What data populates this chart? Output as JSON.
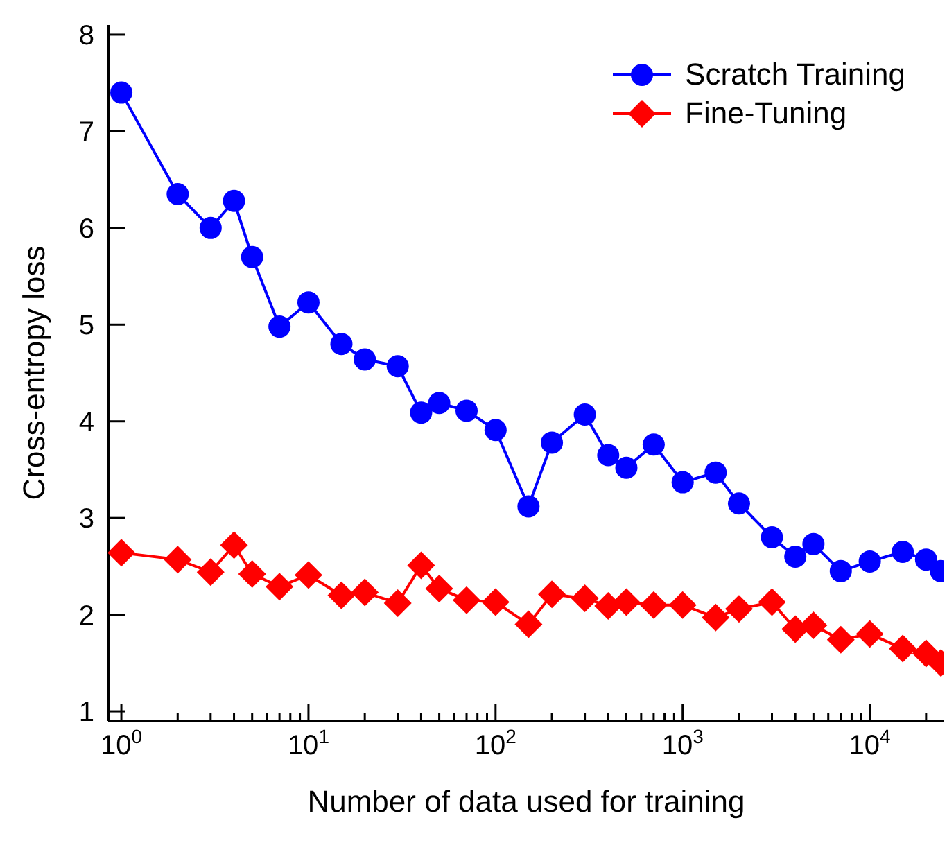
{
  "chart_data": {
    "type": "line",
    "xlabel": "Number of data used for training",
    "ylabel": "Cross-entropy loss",
    "log": "x",
    "xlim": [
      0.85,
      25000
    ],
    "ylim": [
      0.9,
      8.1
    ],
    "yticks": [
      1,
      2,
      3,
      4,
      5,
      6,
      7,
      8
    ],
    "xticks": [
      {
        "value": 1,
        "label": "10$^{0}$"
      },
      {
        "value": 2,
        "label": null
      },
      {
        "value": 3,
        "label": null
      },
      {
        "value": 4,
        "label": null
      },
      {
        "value": 5,
        "label": null
      },
      {
        "value": 6,
        "label": null
      },
      {
        "value": 7,
        "label": null
      },
      {
        "value": 8,
        "label": null
      },
      {
        "value": 9,
        "label": null
      },
      {
        "value": 10,
        "label": "10$^{1}$"
      },
      {
        "value": 20,
        "label": null
      },
      {
        "value": 30,
        "label": null
      },
      {
        "value": 40,
        "label": null
      },
      {
        "value": 50,
        "label": null
      },
      {
        "value": 60,
        "label": null
      },
      {
        "value": 70,
        "label": null
      },
      {
        "value": 80,
        "label": null
      },
      {
        "value": 90,
        "label": null
      },
      {
        "value": 100,
        "label": "10$^{2}$"
      },
      {
        "value": 200,
        "label": null
      },
      {
        "value": 300,
        "label": null
      },
      {
        "value": 400,
        "label": null
      },
      {
        "value": 500,
        "label": null
      },
      {
        "value": 600,
        "label": null
      },
      {
        "value": 700,
        "label": null
      },
      {
        "value": 800,
        "label": null
      },
      {
        "value": 900,
        "label": null
      },
      {
        "value": 1000,
        "label": "10$^{3}$"
      },
      {
        "value": 2000,
        "label": null
      },
      {
        "value": 3000,
        "label": null
      },
      {
        "value": 4000,
        "label": null
      },
      {
        "value": 5000,
        "label": null
      },
      {
        "value": 6000,
        "label": null
      },
      {
        "value": 7000,
        "label": null
      },
      {
        "value": 8000,
        "label": null
      },
      {
        "value": 9000,
        "label": null
      },
      {
        "value": 10000,
        "label": "10$^{4}$"
      },
      {
        "value": 20000,
        "label": null
      }
    ],
    "x": [
      1,
      2,
      3,
      4,
      5,
      7,
      10,
      15,
      20,
      30,
      40,
      50,
      70,
      100,
      150,
      200,
      300,
      400,
      500,
      700,
      1000,
      1500,
      2000,
      3000,
      4000,
      5000,
      7000,
      10000,
      15000,
      20000,
      24000
    ],
    "series": [
      {
        "name": "Scratch Training",
        "color": "#0000ff",
        "marker": "circle",
        "values": [
          7.4,
          6.35,
          6.0,
          6.28,
          5.7,
          4.98,
          5.23,
          4.8,
          4.64,
          4.57,
          4.09,
          4.19,
          4.11,
          3.91,
          3.12,
          3.78,
          4.07,
          3.65,
          3.52,
          3.76,
          3.37,
          3.47,
          3.15,
          2.8,
          2.6,
          2.73,
          2.45,
          2.55,
          2.65,
          2.57,
          2.45
        ]
      },
      {
        "name": "Fine-Tuning",
        "color": "#ff0000",
        "marker": "diamond",
        "values": [
          2.64,
          2.57,
          2.44,
          2.72,
          2.42,
          2.29,
          2.41,
          2.2,
          2.23,
          2.12,
          2.51,
          2.27,
          2.15,
          2.13,
          1.9,
          2.21,
          2.17,
          2.09,
          2.13,
          2.1,
          2.1,
          1.97,
          2.06,
          2.13,
          1.85,
          1.89,
          1.74,
          1.8,
          1.65,
          1.6,
          1.5
        ]
      }
    ],
    "legend": "top right",
    "grid": false
  }
}
